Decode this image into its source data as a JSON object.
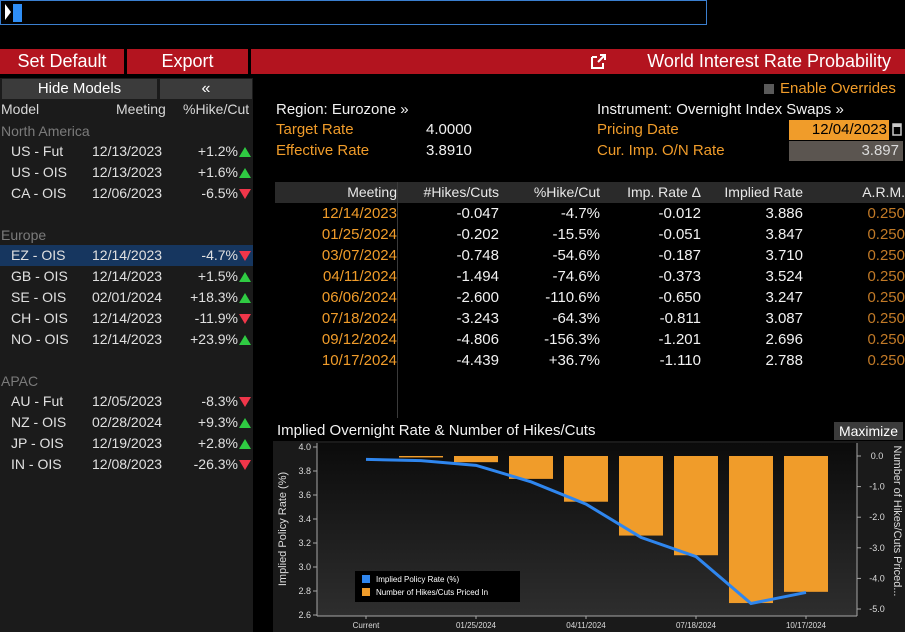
{
  "toolbar": {
    "set_default_label": "Set Default",
    "export_label": "Export",
    "title": "World Interest Rate Probability"
  },
  "left_panel": {
    "hide_models_label": "Hide Models",
    "collapse_glyph": "«",
    "col_model": "Model",
    "col_meeting": "Meeting",
    "col_pct": "%Hike/Cut",
    "groups": [
      {
        "name": "North America",
        "rows": [
          {
            "model": "US - Fut",
            "meeting": "12/13/2023",
            "pct": "+1.2%",
            "dir": "up"
          },
          {
            "model": "US - OIS",
            "meeting": "12/13/2023",
            "pct": "+1.6%",
            "dir": "up"
          },
          {
            "model": "CA - OIS",
            "meeting": "12/06/2023",
            "pct": "-6.5%",
            "dir": "down"
          }
        ]
      },
      {
        "name": "Europe",
        "rows": [
          {
            "model": "EZ - OIS",
            "meeting": "12/14/2023",
            "pct": "-4.7%",
            "dir": "down",
            "selected": true
          },
          {
            "model": "GB - OIS",
            "meeting": "12/14/2023",
            "pct": "+1.5%",
            "dir": "up"
          },
          {
            "model": "SE - OIS",
            "meeting": "02/01/2024",
            "pct": "+18.3%",
            "dir": "up"
          },
          {
            "model": "CH - OIS",
            "meeting": "12/14/2023",
            "pct": "-11.9%",
            "dir": "down"
          },
          {
            "model": "NO - OIS",
            "meeting": "12/14/2023",
            "pct": "+23.9%",
            "dir": "up"
          }
        ]
      },
      {
        "name": "APAC",
        "rows": [
          {
            "model": "AU - Fut",
            "meeting": "12/05/2023",
            "pct": "-8.3%",
            "dir": "down"
          },
          {
            "model": "NZ - OIS",
            "meeting": "02/28/2024",
            "pct": "+9.3%",
            "dir": "up"
          },
          {
            "model": "JP - OIS",
            "meeting": "12/19/2023",
            "pct": "+2.8%",
            "dir": "up"
          },
          {
            "model": "IN - OIS",
            "meeting": "12/08/2023",
            "pct": "-26.3%",
            "dir": "down"
          }
        ]
      }
    ]
  },
  "header": {
    "enable_overrides_label": "Enable Overrides",
    "region": "Region: Eurozone »",
    "instrument": "Instrument: Overnight Index Swaps »",
    "target_rate_label": "Target Rate",
    "target_rate_value": "4.0000",
    "effective_rate_label": "Effective Rate",
    "effective_rate_value": "3.8910",
    "pricing_date_label": "Pricing Date",
    "pricing_date_value": "12/04/2023",
    "cur_imp_label": "Cur. Imp. O/N Rate",
    "cur_imp_value": "3.897"
  },
  "table": {
    "columns": [
      "Meeting",
      "#Hikes/Cuts",
      "%Hike/Cut",
      "Imp. Rate Δ",
      "Implied Rate",
      "A.R.M."
    ],
    "rows": [
      [
        "12/14/2023",
        "-0.047",
        "-4.7%",
        "-0.012",
        "3.886",
        "0.250"
      ],
      [
        "01/25/2024",
        "-0.202",
        "-15.5%",
        "-0.051",
        "3.847",
        "0.250"
      ],
      [
        "03/07/2024",
        "-0.748",
        "-54.6%",
        "-0.187",
        "3.710",
        "0.250"
      ],
      [
        "04/11/2024",
        "-1.494",
        "-74.6%",
        "-0.373",
        "3.524",
        "0.250"
      ],
      [
        "06/06/2024",
        "-2.600",
        "-110.6%",
        "-0.650",
        "3.247",
        "0.250"
      ],
      [
        "07/18/2024",
        "-3.243",
        "-64.3%",
        "-0.811",
        "3.087",
        "0.250"
      ],
      [
        "09/12/2024",
        "-4.806",
        "-156.3%",
        "-1.201",
        "2.696",
        "0.250"
      ],
      [
        "10/17/2024",
        "-4.439",
        "+36.7%",
        "-1.110",
        "2.788",
        "0.250"
      ]
    ]
  },
  "chart": {
    "title": "Implied Overnight Rate & Number of Hikes/Cuts",
    "maximize_label": "Maximize",
    "colors": {
      "line": "#2f86ee",
      "bars": "#f09c2a"
    }
  },
  "chart_data": {
    "type": "bar",
    "x_ticks": [
      "Current",
      "01/25/2024",
      "04/11/2024",
      "07/18/2024",
      "10/17/2024"
    ],
    "categories": [
      "Current",
      "12/14/2023",
      "01/25/2024",
      "03/07/2024",
      "04/11/2024",
      "06/06/2024",
      "07/18/2024",
      "09/12/2024",
      "10/17/2024"
    ],
    "series": [
      {
        "name": "Implied Policy Rate (%)",
        "type": "line",
        "axis": "left",
        "values": [
          3.897,
          3.886,
          3.847,
          3.71,
          3.524,
          3.247,
          3.087,
          2.696,
          2.788
        ]
      },
      {
        "name": "Number of Hikes/Cuts Priced In",
        "type": "bar",
        "axis": "right",
        "values": [
          null,
          -0.047,
          -0.202,
          -0.748,
          -1.494,
          -2.6,
          -3.243,
          -4.806,
          -4.439
        ]
      }
    ],
    "ylabel_left": "Implied Policy Rate (%)",
    "ylabel_right": "Number of Hikes/Cuts Priced...",
    "ylim_left": [
      2.6,
      4.0
    ],
    "yticks_left": [
      "4.0",
      "3.8",
      "3.6",
      "3.4",
      "3.2",
      "3.0",
      "2.8",
      "2.6"
    ],
    "ylim_right": [
      -5.0,
      0.0
    ],
    "yticks_right": [
      "0.0",
      "-1.0",
      "-2.0",
      "-3.0",
      "-4.0",
      "-5.0"
    ],
    "legend": "bottom-left",
    "grid": false
  }
}
